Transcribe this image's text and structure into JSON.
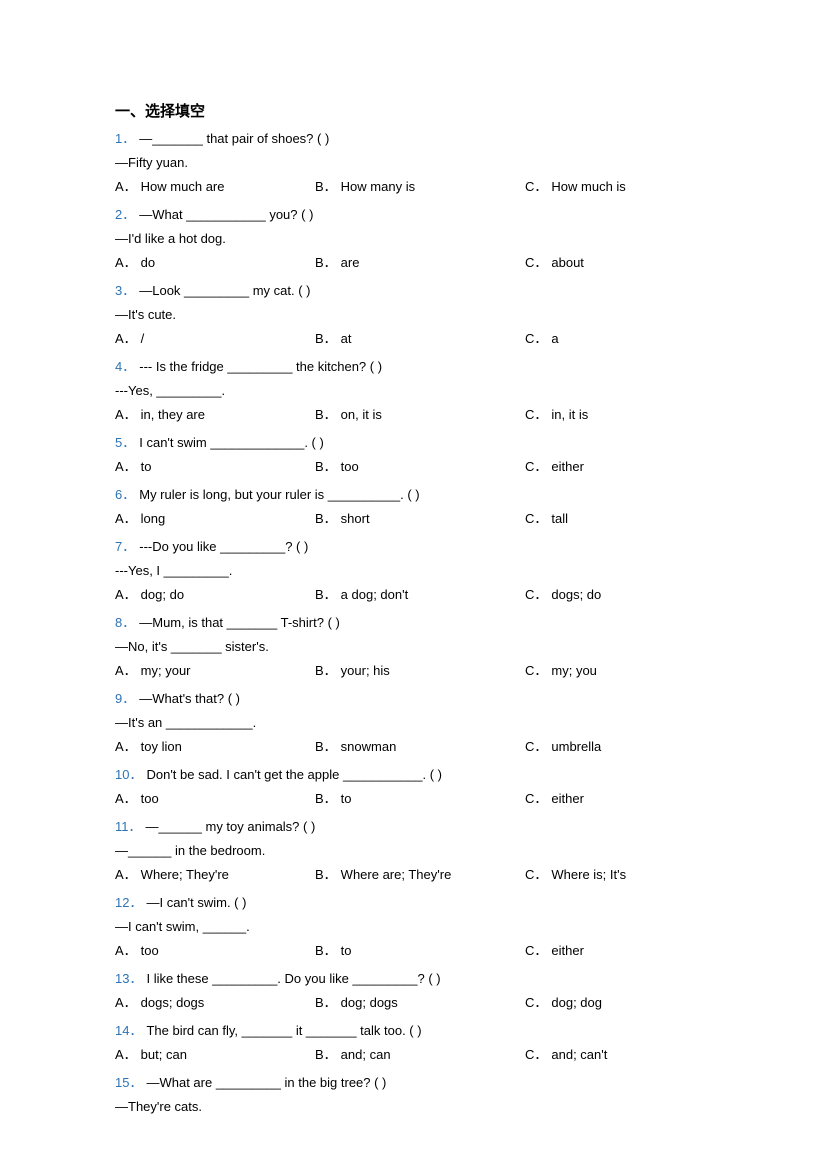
{
  "section_title": "一、选择填空",
  "questions": [
    {
      "num": "1．",
      "lines": [
        "—_______ that pair of shoes? (      )",
        "—Fifty yuan."
      ],
      "options": {
        "A": "How much are",
        "B": "How many is",
        "C": "How much is"
      }
    },
    {
      "num": "2．",
      "lines": [
        "—What ___________ you? (    )",
        "—I'd like a hot dog."
      ],
      "options": {
        "A": "do",
        "B": "are",
        "C": "about"
      }
    },
    {
      "num": "3．",
      "lines": [
        "—Look _________ my cat. (     )",
        "—It's cute."
      ],
      "options": {
        "A": "/",
        "B": "at",
        "C": "a"
      }
    },
    {
      "num": "4．",
      "lines": [
        "--- Is the fridge _________ the kitchen? (     )",
        "---Yes, _________."
      ],
      "options": {
        "A": "in, they are",
        "B": "on, it is",
        "C": "in, it is"
      }
    },
    {
      "num": "5．",
      "lines": [
        "I can't swim _____________. (    )"
      ],
      "options": {
        "A": "to",
        "B": "too",
        "C": "either"
      }
    },
    {
      "num": "6．",
      "lines": [
        "My ruler is long, but your ruler is __________. (    )"
      ],
      "options": {
        "A": "long",
        "B": "short",
        "C": "tall"
      }
    },
    {
      "num": "7．",
      "lines": [
        "---Do you like _________? (     )",
        "---Yes, I _________."
      ],
      "options": {
        "A": "dog; do",
        "B": "a dog; don't",
        "C": "dogs; do"
      }
    },
    {
      "num": "8．",
      "lines": [
        "—Mum, is that _______ T-shirt? (     )",
        "—No, it's _______ sister's."
      ],
      "options": {
        "A": "my; your",
        "B": "your; his",
        "C": "my; you"
      }
    },
    {
      "num": "9．",
      "lines": [
        "—What's that? (     )",
        "—It's an ____________."
      ],
      "options": {
        "A": "toy lion",
        "B": "snowman",
        "C": "umbrella"
      }
    },
    {
      "num": "10．",
      "lines": [
        "Don't be sad. I can't get the apple ___________. (     )"
      ],
      "options": {
        "A": "too",
        "B": "to",
        "C": "either"
      }
    },
    {
      "num": "11．",
      "lines": [
        "—______ my toy animals? (     )",
        "—______ in the bedroom."
      ],
      "options": {
        "A": "Where; They're",
        "B": "Where are; They're",
        "C": "Where is; It's"
      }
    },
    {
      "num": "12．",
      "lines": [
        "—I can't swim. (     )",
        "—I can't swim, ______."
      ],
      "options": {
        "A": "too",
        "B": "to",
        "C": "either"
      }
    },
    {
      "num": "13．",
      "lines": [
        "I like these _________. Do you like _________? (     )"
      ],
      "options": {
        "A": "dogs; dogs",
        "B": "dog; dogs",
        "C": "dog; dog"
      }
    },
    {
      "num": "14．",
      "lines": [
        "The bird can fly, _______ it _______ talk too. (     )"
      ],
      "options": {
        "A": "but; can",
        "B": "and; can",
        "C": "and; can't"
      }
    },
    {
      "num": "15．",
      "lines": [
        "—What are _________ in the big tree? (     )",
        "—They're cats."
      ],
      "options": {
        "A": null,
        "B": null,
        "C": null
      }
    }
  ],
  "option_prefix": {
    "A": "A．",
    "B": "B．",
    "C": "C．"
  },
  "colors": {
    "number": "#2e74b5",
    "text": "#000000",
    "background": "#ffffff"
  },
  "fonts": {
    "body_size": 13,
    "title_size": 15
  }
}
